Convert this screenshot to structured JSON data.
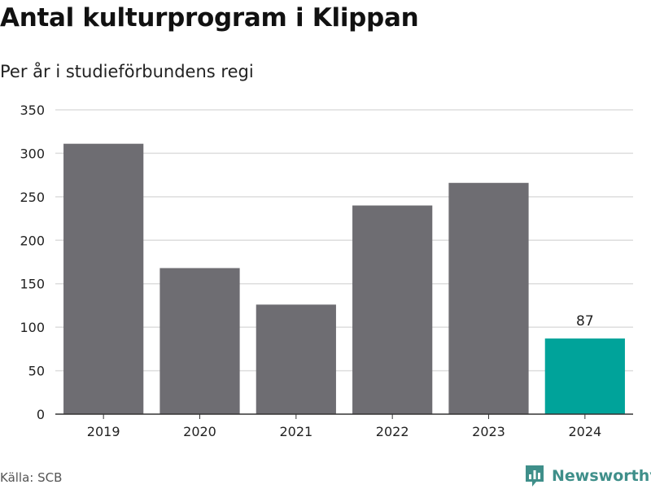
{
  "header": {
    "title": "Antal kulturprogram i Klippan",
    "subtitle": "Per år i studieförbundens regi"
  },
  "footer": {
    "source": "Källa: SCB",
    "brand": "Newsworthy",
    "brand_icon": "newsworthy-logo-icon"
  },
  "colors": {
    "bar": "#6e6d72",
    "highlight": "#00a39a",
    "grid": "#dddddd",
    "axis": "#333333",
    "brand": "#3f8f8a"
  },
  "chart_data": {
    "type": "bar",
    "title": "Antal kulturprogram i Klippan",
    "subtitle": "Per år i studieförbundens regi",
    "categories": [
      "2019",
      "2020",
      "2021",
      "2022",
      "2023",
      "2024"
    ],
    "values": [
      311,
      168,
      126,
      240,
      266,
      87
    ],
    "highlight_index": 5,
    "data_labels": [
      {
        "index": 5,
        "text": "87"
      }
    ],
    "ylim": [
      0,
      350
    ],
    "yticks": [
      0,
      50,
      100,
      150,
      200,
      250,
      300,
      350
    ],
    "grid": true,
    "xlabel": "",
    "ylabel": ""
  }
}
